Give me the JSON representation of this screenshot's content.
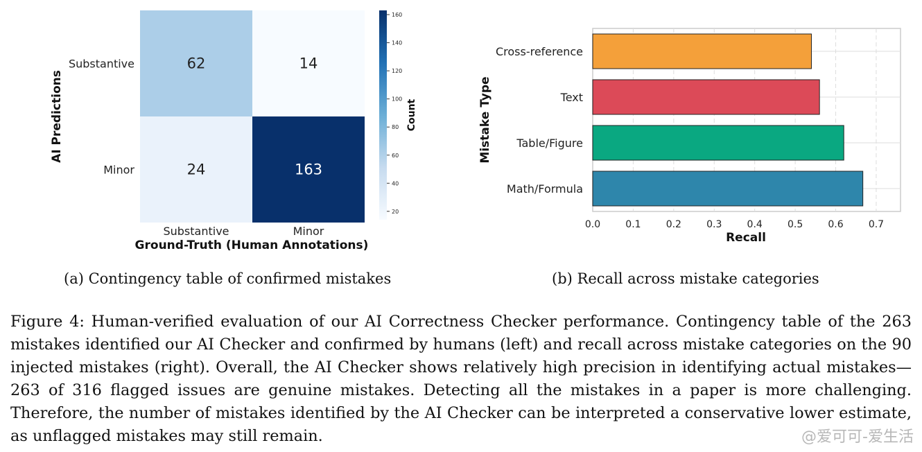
{
  "chart_data": [
    {
      "type": "heatmap",
      "xlabel": "Ground-Truth (Human Annotations)",
      "ylabel": "AI Predictions",
      "x_categories": [
        "Substantive",
        "Minor"
      ],
      "y_categories": [
        "Substantive",
        "Minor"
      ],
      "values": [
        [
          62,
          14
        ],
        [
          24,
          163
        ]
      ],
      "colorbar": {
        "label": "Count",
        "ticks": [
          20,
          40,
          60,
          80,
          100,
          120,
          140,
          160
        ],
        "range": [
          14,
          163
        ],
        "colormap": "Blues"
      },
      "caption": "(a) Contingency table of confirmed mistakes"
    },
    {
      "type": "bar",
      "orientation": "horizontal",
      "categories": [
        "Cross-reference",
        "Text",
        "Table/Figure",
        "Math/Formula"
      ],
      "values": [
        0.54,
        0.56,
        0.62,
        0.667
      ],
      "colors": [
        "#f4a03a",
        "#dc4a58",
        "#0aa881",
        "#2e86ab"
      ],
      "xlabel": "Recall",
      "ylabel": "Mistake Type",
      "xlim": [
        0,
        0.76
      ],
      "xticks": [
        "0.0",
        "0.1",
        "0.2",
        "0.3",
        "0.4",
        "0.5",
        "0.6",
        "0.7"
      ],
      "grid": true,
      "caption": "(b) Recall across mistake categories"
    }
  ],
  "figure_caption": "Figure 4: Human-verified evaluation of our AI Correctness Checker performance. Contingency table of the 263 mistakes identified our AI Checker and confirmed by humans (left) and recall across mistake categories on the 90 injected mistakes (right). Overall, the AI Checker shows relatively high precision in identifying actual mistakes—263 of 316 flagged issues are genuine mistakes. Detecting all the mistakes in a paper is more challenging. Therefore, the number of mistakes identified by the AI Checker can be interpreted a conservative lower estimate, as unflagged mistakes may still remain.",
  "watermark": "@爱可可-爱生活"
}
